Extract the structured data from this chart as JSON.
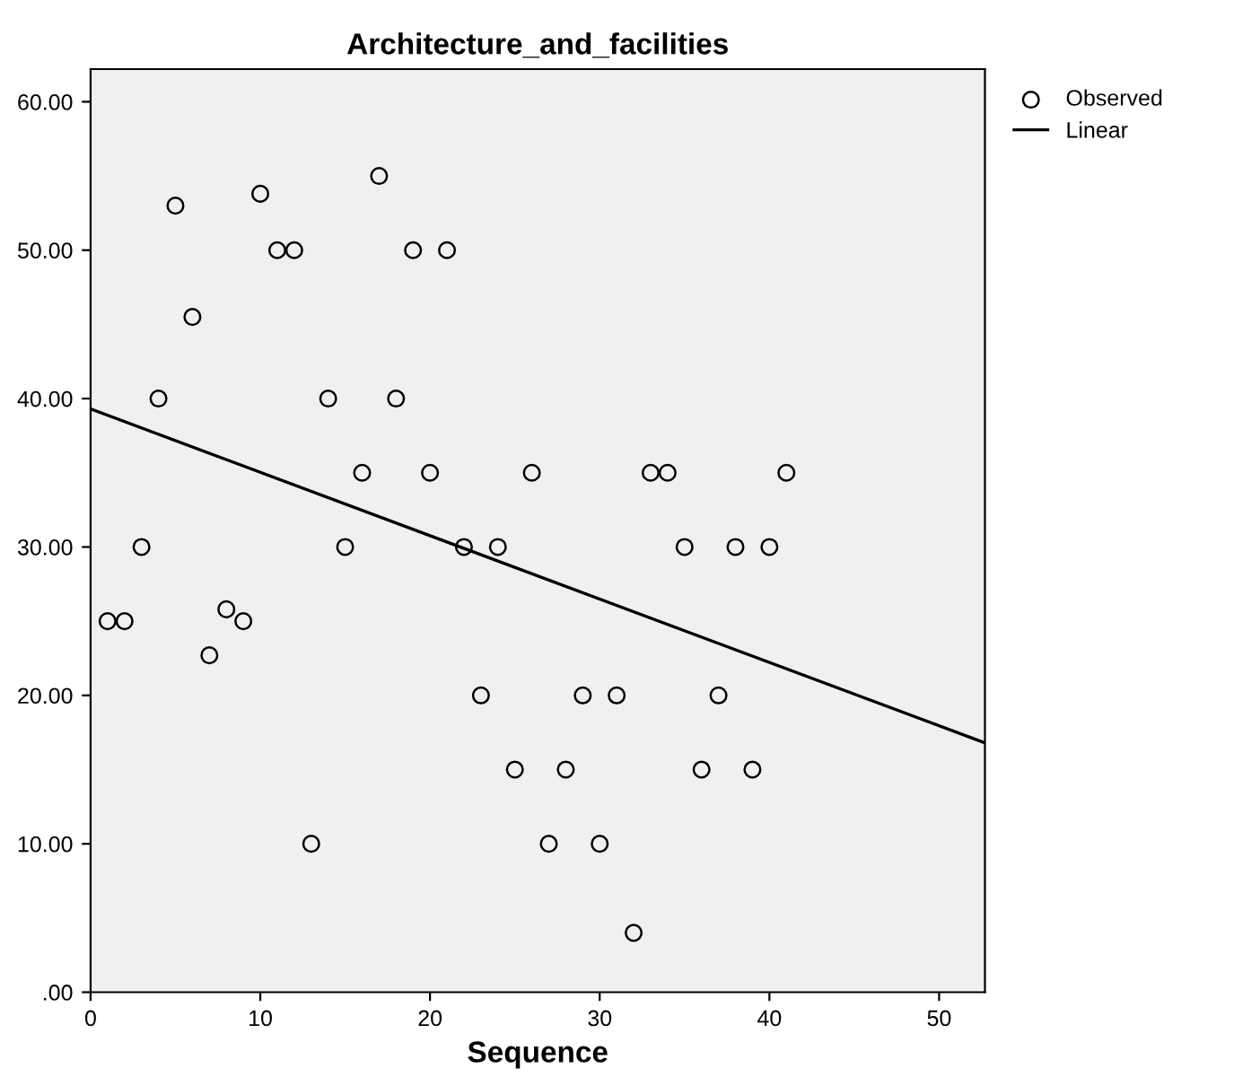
{
  "chart_data": {
    "type": "scatter",
    "title": "Architecture_and_facilities",
    "xlabel": "Sequence",
    "xlim": [
      0,
      52.7
    ],
    "ylim": [
      0,
      62.2
    ],
    "xticks": [
      0,
      10,
      20,
      30,
      40,
      50
    ],
    "yticks": [
      {
        "value": 0,
        "label": ".00"
      },
      {
        "value": 10,
        "label": "10.00"
      },
      {
        "value": 20,
        "label": "20.00"
      },
      {
        "value": 30,
        "label": "30.00"
      },
      {
        "value": 40,
        "label": "40.00"
      },
      {
        "value": 50,
        "label": "50.00"
      },
      {
        "value": 60,
        "label": "60.00"
      }
    ],
    "grid": false,
    "legend": "top right",
    "series": [
      {
        "name": "Observed",
        "marker": "circle",
        "color": "#000000",
        "x": [
          1,
          2,
          3,
          4,
          5,
          6,
          7,
          8,
          9,
          10,
          11,
          12,
          13,
          14,
          15,
          16,
          17,
          18,
          19,
          20,
          21,
          22,
          23,
          24,
          25,
          26,
          27,
          28,
          29,
          30,
          31,
          32,
          33,
          34,
          35,
          36,
          37,
          38,
          39,
          40,
          41
        ],
        "values": [
          25,
          25,
          30,
          40,
          53,
          45.5,
          22.7,
          25.8,
          25,
          53.8,
          50,
          50,
          10,
          40,
          30,
          35,
          55,
          40,
          50,
          35,
          50,
          30,
          20,
          30,
          15,
          35,
          10,
          15,
          20,
          10,
          20,
          4,
          35,
          35,
          30,
          15,
          20,
          30,
          15,
          30,
          35
        ]
      },
      {
        "name": "Linear",
        "type": "line",
        "marker": "none",
        "color": "#000000",
        "x": [
          0,
          52.7
        ],
        "values": [
          39.3,
          16.8
        ]
      }
    ]
  }
}
